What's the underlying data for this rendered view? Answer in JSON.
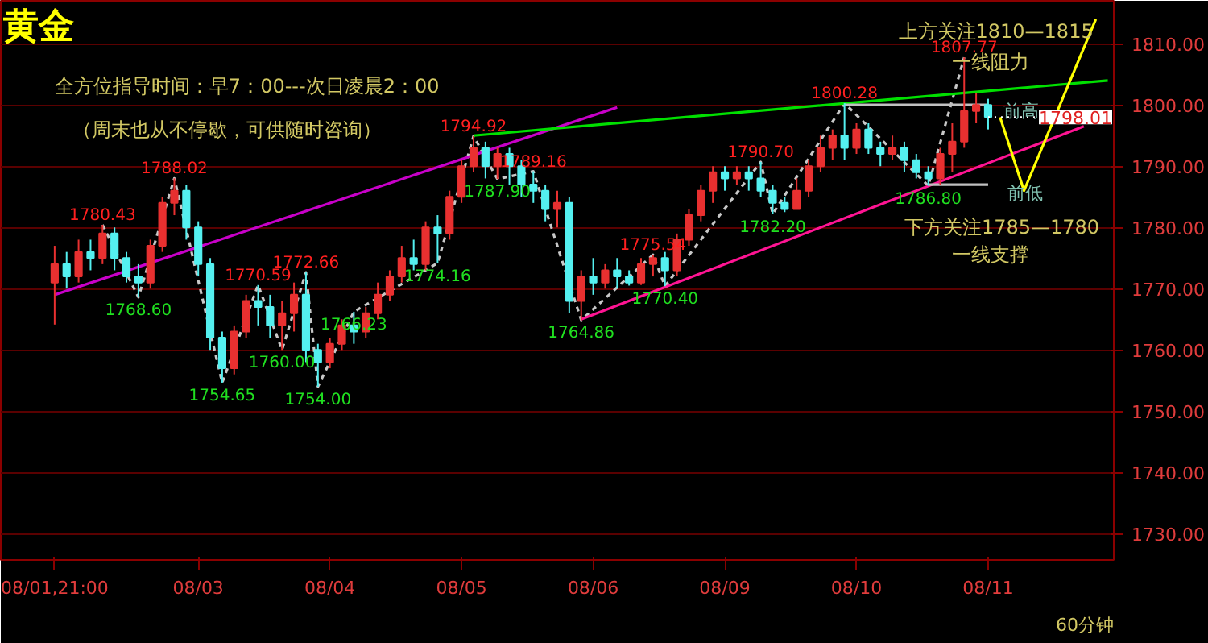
{
  "chart_data": {
    "type": "candlestick",
    "title": "黄金",
    "categories": [
      "08/01,21:00",
      null,
      null,
      null,
      null,
      null,
      null,
      null,
      null,
      null,
      null,
      null,
      "08/03",
      null,
      null,
      null,
      null,
      null,
      null,
      null,
      null,
      null,
      null,
      "08/04",
      null,
      null,
      null,
      null,
      null,
      null,
      null,
      null,
      null,
      null,
      "08/05",
      null,
      null,
      null,
      null,
      null,
      null,
      null,
      null,
      null,
      null,
      "08/06",
      null,
      null,
      null,
      null,
      null,
      null,
      null,
      null,
      null,
      null,
      "08/09",
      null,
      null,
      null,
      null,
      null,
      null,
      null,
      null,
      null,
      null,
      "08/10",
      null,
      null,
      null,
      null,
      null,
      null,
      null,
      null,
      null,
      null,
      "08/11",
      null,
      null,
      null,
      null,
      null,
      null,
      null,
      null,
      null,
      null
    ],
    "ohlc": [
      [
        1771,
        1777,
        1764.14,
        1774
      ],
      [
        1774,
        1776,
        1770,
        1772
      ],
      [
        1772,
        1778,
        1771,
        1776
      ],
      [
        1776,
        1778,
        1773,
        1775
      ],
      [
        1775,
        1780.43,
        1774,
        1779
      ],
      [
        1779,
        1780,
        1773,
        1775
      ],
      [
        1775,
        1776,
        1771,
        1772
      ],
      [
        1772,
        1774,
        1768.6,
        1771
      ],
      [
        1771,
        1778,
        1770,
        1777
      ],
      [
        1777,
        1785,
        1776,
        1784
      ],
      [
        1784,
        1788.02,
        1782,
        1786
      ],
      [
        1786,
        1787,
        1778,
        1780
      ],
      [
        1780,
        1781,
        1772,
        1774
      ],
      [
        1774,
        1775,
        1760,
        1762
      ],
      [
        1762,
        1763,
        1754.65,
        1757
      ],
      [
        1757,
        1764,
        1756,
        1763
      ],
      [
        1763,
        1769,
        1762,
        1768
      ],
      [
        1768,
        1770.59,
        1764,
        1767
      ],
      [
        1767,
        1769,
        1762,
        1764
      ],
      [
        1764,
        1768,
        1760,
        1766
      ],
      [
        1766,
        1771,
        1763,
        1769
      ],
      [
        1769,
        1772.66,
        1758,
        1760
      ],
      [
        1760,
        1761,
        1754,
        1758
      ],
      [
        1758,
        1762,
        1757,
        1761
      ],
      [
        1761,
        1765,
        1760,
        1764
      ],
      [
        1764,
        1766.23,
        1761,
        1763
      ],
      [
        1763,
        1767,
        1762,
        1766
      ],
      [
        1766,
        1771,
        1765,
        1769
      ],
      [
        1769,
        1773,
        1768,
        1772
      ],
      [
        1772,
        1777,
        1771,
        1775
      ],
      [
        1775,
        1778,
        1773,
        1774
      ],
      [
        1774,
        1781,
        1773,
        1780
      ],
      [
        1780,
        1782,
        1774.16,
        1779
      ],
      [
        1779,
        1786,
        1778,
        1785
      ],
      [
        1785,
        1791,
        1784,
        1790
      ],
      [
        1790,
        1794.92,
        1789,
        1793
      ],
      [
        1793,
        1794,
        1788,
        1790
      ],
      [
        1790,
        1793,
        1787.9,
        1792
      ],
      [
        1792,
        1793,
        1787,
        1790
      ],
      [
        1790,
        1791,
        1785,
        1787
      ],
      [
        1787,
        1789.16,
        1784,
        1786
      ],
      [
        1786,
        1787,
        1781,
        1783
      ],
      [
        1783,
        1786,
        1780,
        1784
      ],
      [
        1784,
        1785,
        1766,
        1768
      ],
      [
        1768,
        1773,
        1764.86,
        1772
      ],
      [
        1772,
        1775,
        1769,
        1771
      ],
      [
        1771,
        1774,
        1770,
        1773
      ],
      [
        1773,
        1775,
        1770,
        1772
      ],
      [
        1772,
        1773,
        1770.5,
        1771
      ],
      [
        1771,
        1775,
        1770.6,
        1774
      ],
      [
        1774,
        1775.54,
        1772,
        1775
      ],
      [
        1775,
        1776,
        1770.4,
        1773
      ],
      [
        1773,
        1779,
        1772,
        1778
      ],
      [
        1778,
        1783,
        1777,
        1782
      ],
      [
        1782,
        1787,
        1781,
        1786
      ],
      [
        1786,
        1790,
        1784,
        1789
      ],
      [
        1789,
        1790,
        1786,
        1788
      ],
      [
        1788,
        1790,
        1787,
        1789
      ],
      [
        1789,
        1790,
        1786,
        1788
      ],
      [
        1788,
        1790.7,
        1785,
        1786
      ],
      [
        1786,
        1787,
        1782.2,
        1784
      ],
      [
        1784,
        1785,
        1782.5,
        1783
      ],
      [
        1783,
        1788,
        1783,
        1786
      ],
      [
        1786,
        1791,
        1785,
        1790
      ],
      [
        1790,
        1795,
        1789,
        1793
      ],
      [
        1793,
        1796,
        1791,
        1795
      ],
      [
        1795,
        1800.28,
        1791,
        1793
      ],
      [
        1793,
        1797,
        1792,
        1796
      ],
      [
        1796,
        1797,
        1792,
        1793
      ],
      [
        1793,
        1794,
        1790,
        1792
      ],
      [
        1792,
        1795,
        1791,
        1793
      ],
      [
        1793,
        1794,
        1789,
        1791
      ],
      [
        1791,
        1792,
        1788,
        1789
      ],
      [
        1789,
        1790,
        1786.8,
        1788
      ],
      [
        1788,
        1793,
        1787,
        1792
      ],
      [
        1792,
        1797,
        1789,
        1794
      ],
      [
        1794,
        1807.77,
        1793,
        1799
      ],
      [
        1799,
        1802,
        1797,
        1800
      ],
      [
        1800,
        1801,
        1796,
        1798.01
      ],
      null,
      null,
      null,
      null,
      null,
      null,
      null,
      null,
      null,
      null
    ],
    "series": [
      {
        "type": "line",
        "color": "#c8c8c8",
        "line_style": "dashed",
        "values": [
          null,
          null,
          null,
          null,
          1780.43,
          null,
          null,
          1768.6,
          null,
          null,
          1788.02,
          null,
          null,
          null,
          1754.65,
          null,
          null,
          1770.59,
          null,
          1760.0,
          null,
          1772.66,
          1754.0,
          null,
          null,
          1766.23,
          null,
          null,
          null,
          null,
          null,
          null,
          1774.16,
          null,
          null,
          1794.92,
          null,
          1787.9,
          null,
          null,
          1789.16,
          null,
          null,
          null,
          1764.86,
          null,
          null,
          null,
          null,
          null,
          1775.54,
          1770.4,
          null,
          null,
          null,
          null,
          null,
          null,
          null,
          1790.7,
          1782.2,
          null,
          null,
          null,
          null,
          null,
          1800.28,
          null,
          null,
          null,
          null,
          null,
          null,
          1786.8,
          null,
          null,
          1807.77,
          null,
          null,
          null,
          null,
          null,
          null,
          null,
          null,
          null,
          null,
          null,
          null
        ],
        "value_labels": [
          null,
          null,
          null,
          null,
          "1780.43",
          null,
          null,
          "1768.60",
          null,
          null,
          "1788.02",
          null,
          null,
          null,
          "1754.65",
          null,
          null,
          "1770.59",
          null,
          "1760.00",
          null,
          "1772.66",
          "1754.00",
          null,
          null,
          "1766.23",
          null,
          null,
          null,
          null,
          null,
          null,
          "1774.16",
          null,
          null,
          "1794.92",
          null,
          "1787.90",
          null,
          null,
          "1789.16",
          null,
          null,
          null,
          "1764.86",
          null,
          null,
          null,
          null,
          null,
          "1775.54",
          "1770.40",
          null,
          null,
          null,
          null,
          null,
          null,
          null,
          "1790.70",
          "1782.20",
          null,
          null,
          null,
          null,
          null,
          "1800.28",
          null,
          null,
          null,
          null,
          null,
          null,
          "1786.80",
          null,
          null,
          "1807.77",
          null,
          null,
          null,
          null,
          null,
          null,
          null,
          null,
          null,
          null,
          null,
          null
        ]
      },
      {
        "type": "line",
        "color": "#c800c8",
        "values": [
          1769,
          null,
          null,
          null,
          null,
          null,
          null,
          null,
          null,
          null,
          null,
          null,
          null,
          null,
          null,
          null,
          null,
          null,
          null,
          null,
          null,
          null,
          null,
          null,
          null,
          null,
          null,
          null,
          null,
          null,
          null,
          null,
          null,
          null,
          null,
          null,
          null,
          null,
          null,
          null,
          null,
          null,
          null,
          null,
          null,
          null,
          null,
          1799.6,
          null,
          null,
          null,
          null,
          null,
          null,
          null,
          null,
          null,
          null,
          null,
          null,
          null,
          null,
          null,
          null,
          null,
          null,
          null,
          null,
          null,
          null,
          null,
          null,
          null,
          null,
          null,
          null,
          null,
          null,
          null,
          null,
          null,
          null,
          null,
          null,
          null,
          null,
          null,
          null,
          null
        ]
      },
      {
        "type": "line",
        "color": "#00e000",
        "values": [
          null,
          null,
          null,
          null,
          null,
          null,
          null,
          null,
          null,
          null,
          null,
          null,
          null,
          null,
          null,
          null,
          null,
          null,
          null,
          null,
          null,
          null,
          null,
          null,
          null,
          null,
          null,
          null,
          null,
          null,
          null,
          null,
          null,
          null,
          null,
          1795,
          null,
          null,
          null,
          null,
          null,
          null,
          null,
          null,
          null,
          null,
          null,
          null,
          null,
          null,
          null,
          null,
          null,
          null,
          null,
          null,
          null,
          null,
          null,
          null,
          null,
          null,
          null,
          null,
          null,
          null,
          null,
          null,
          null,
          null,
          null,
          null,
          null,
          null,
          null,
          null,
          null,
          null,
          null,
          null,
          null,
          null,
          null,
          null,
          null,
          null,
          null,
          null,
          1804
        ]
      },
      {
        "type": "line",
        "color": "#ff1493",
        "values": [
          null,
          null,
          null,
          null,
          null,
          null,
          null,
          null,
          null,
          null,
          null,
          null,
          null,
          null,
          null,
          null,
          null,
          null,
          null,
          null,
          null,
          null,
          null,
          null,
          null,
          null,
          null,
          null,
          null,
          null,
          null,
          null,
          null,
          null,
          null,
          null,
          null,
          null,
          null,
          null,
          null,
          null,
          null,
          null,
          1765,
          null,
          null,
          null,
          null,
          null,
          null,
          null,
          null,
          null,
          null,
          null,
          null,
          null,
          null,
          null,
          null,
          null,
          null,
          null,
          null,
          null,
          null,
          null,
          null,
          null,
          null,
          null,
          null,
          null,
          null,
          null,
          null,
          null,
          null,
          null,
          null,
          null,
          null,
          null,
          null,
          null,
          1796.5,
          null,
          null
        ]
      },
      {
        "type": "line",
        "color": "#c0c0c0",
        "values": [
          null,
          null,
          null,
          null,
          null,
          null,
          null,
          null,
          null,
          null,
          null,
          null,
          null,
          null,
          null,
          null,
          null,
          null,
          null,
          null,
          null,
          null,
          null,
          null,
          null,
          null,
          null,
          null,
          null,
          null,
          null,
          null,
          null,
          null,
          null,
          null,
          null,
          null,
          null,
          null,
          null,
          null,
          null,
          null,
          null,
          null,
          null,
          null,
          null,
          null,
          null,
          null,
          null,
          null,
          null,
          null,
          null,
          null,
          null,
          null,
          null,
          null,
          null,
          null,
          null,
          null,
          1800,
          null,
          null,
          null,
          null,
          null,
          null,
          null,
          null,
          null,
          null,
          null,
          1800,
          null,
          null,
          null,
          null,
          null,
          null,
          null,
          null,
          null,
          null
        ]
      },
      {
        "type": "line",
        "color": "#c0c0c0",
        "values": [
          null,
          null,
          null,
          null,
          null,
          null,
          null,
          null,
          null,
          null,
          null,
          null,
          null,
          null,
          null,
          null,
          null,
          null,
          null,
          null,
          null,
          null,
          null,
          null,
          null,
          null,
          null,
          null,
          null,
          null,
          null,
          null,
          null,
          null,
          null,
          null,
          null,
          null,
          null,
          null,
          null,
          null,
          null,
          null,
          null,
          null,
          null,
          null,
          null,
          null,
          null,
          null,
          null,
          null,
          null,
          null,
          null,
          null,
          null,
          null,
          null,
          null,
          null,
          null,
          null,
          null,
          null,
          null,
          null,
          null,
          null,
          null,
          null,
          1787,
          null,
          null,
          null,
          null,
          1787,
          null,
          null,
          null,
          null,
          null,
          null,
          null,
          null,
          null,
          null
        ]
      },
      {
        "type": "line",
        "color": "#ffff00",
        "values": [
          null,
          null,
          null,
          null,
          null,
          null,
          null,
          null,
          null,
          null,
          null,
          null,
          null,
          null,
          null,
          null,
          null,
          null,
          null,
          null,
          null,
          null,
          null,
          null,
          null,
          null,
          null,
          null,
          null,
          null,
          null,
          null,
          null,
          null,
          null,
          null,
          null,
          null,
          null,
          null,
          null,
          null,
          null,
          null,
          null,
          null,
          null,
          null,
          null,
          null,
          null,
          null,
          null,
          null,
          null,
          null,
          null,
          null,
          null,
          null,
          null,
          null,
          null,
          null,
          null,
          null,
          null,
          null,
          null,
          null,
          null,
          null,
          null,
          null,
          null,
          null,
          null,
          null,
          null,
          1798,
          null,
          1786,
          null,
          null,
          null,
          null,
          null,
          1814,
          null
        ]
      }
    ],
    "ref_lines": [
      {
        "axis": "y",
        "value": 1798.01,
        "label": "1798.01"
      }
    ],
    "ylim": [
      1725.7,
      1817
    ],
    "yticks": [
      {
        "value": 1730,
        "label": "1730.00"
      },
      {
        "value": 1740,
        "label": "1740.00"
      },
      {
        "value": 1750,
        "label": "1750.00"
      },
      {
        "value": 1760,
        "label": "1760.00"
      },
      {
        "value": 1770,
        "label": "1770.00"
      },
      {
        "value": 1780,
        "label": "1780.00"
      },
      {
        "value": 1790,
        "label": "1790.00"
      },
      {
        "value": 1800,
        "label": "1800.00"
      },
      {
        "value": 1810,
        "label": "1810.00"
      }
    ],
    "grid": "y",
    "annotations": [
      "全方位指导时间：早7：00---次日凌晨2：00",
      "（周末也从不停歇，可供随时咨询）",
      "上方关注1810—1815",
      "一线阻力",
      "下方关注1785—1780",
      "一线支撑",
      "前高",
      "前低",
      "60分钟"
    ]
  }
}
